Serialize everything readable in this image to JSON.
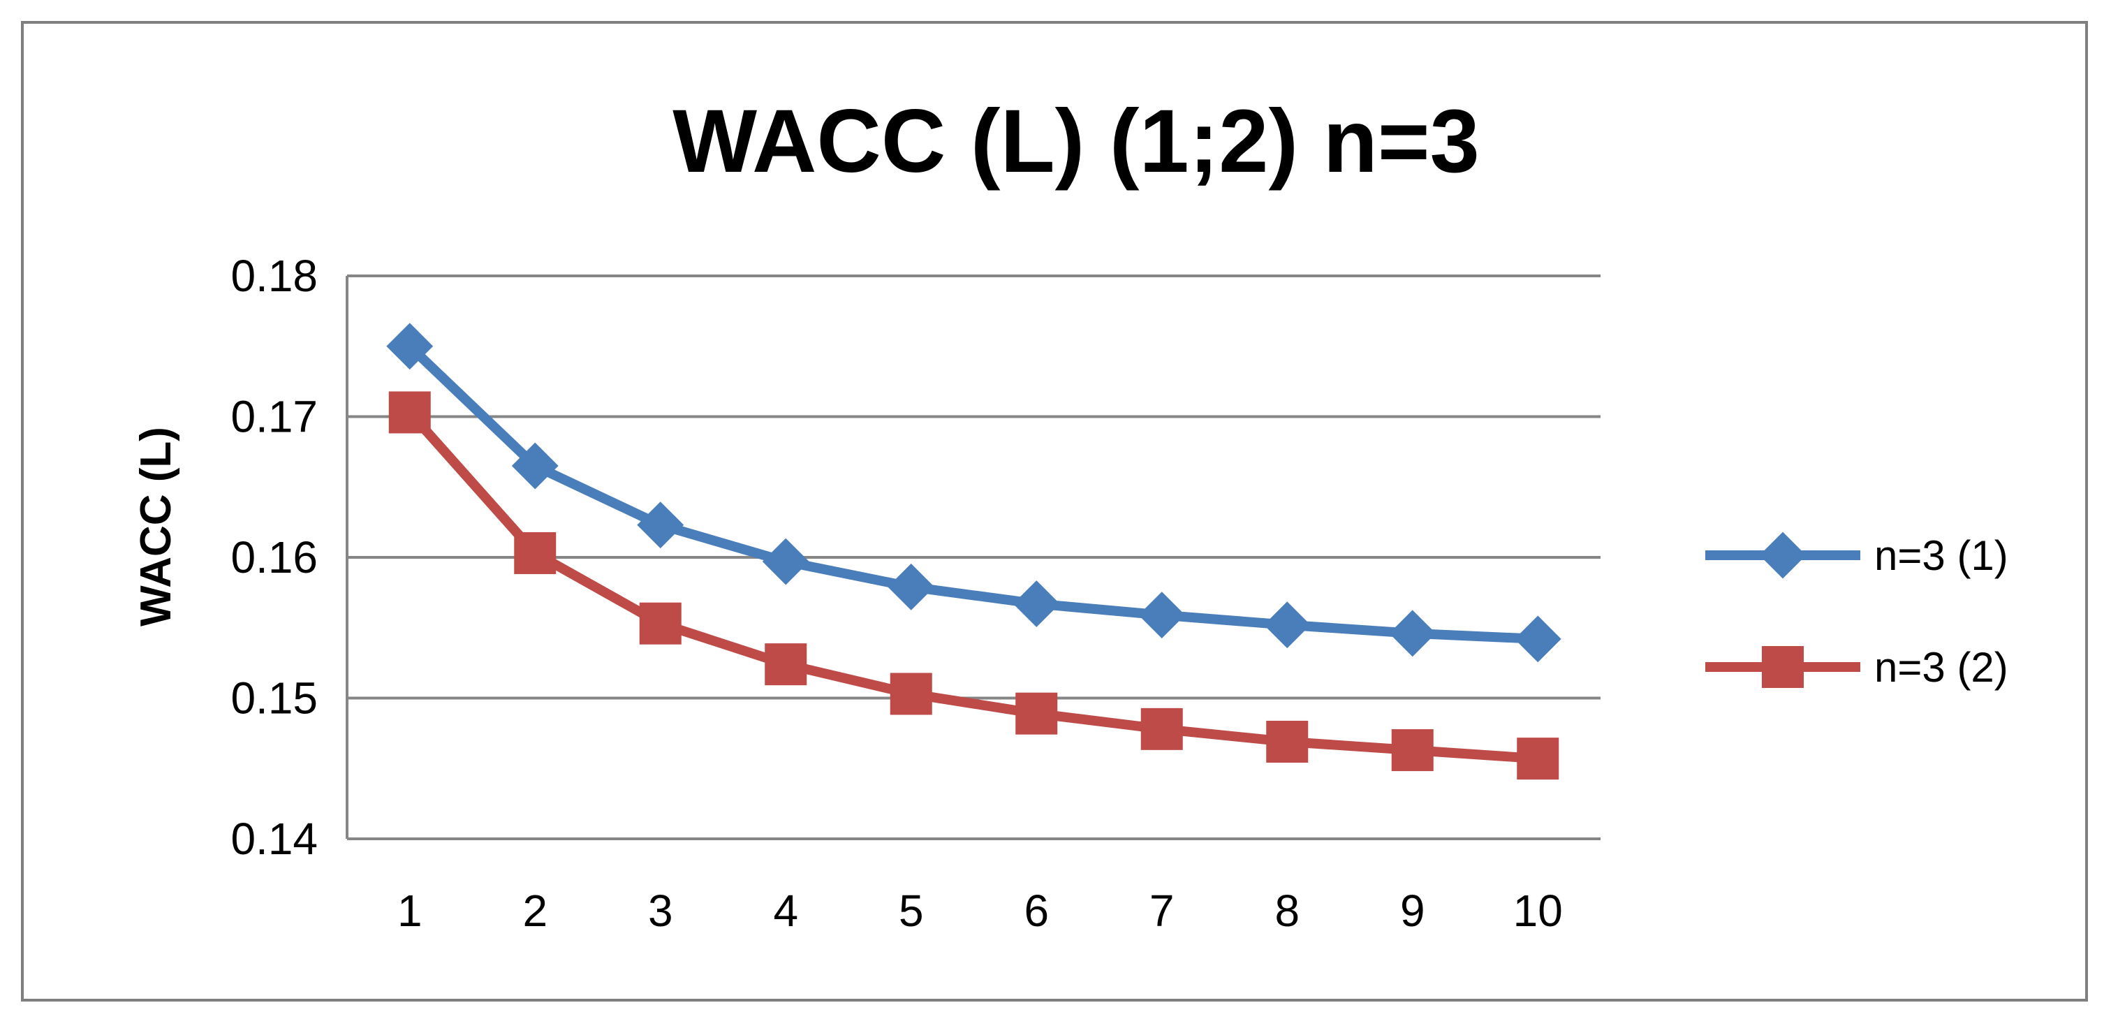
{
  "chart_data": {
    "type": "line",
    "title": "WACC (L) (1;2) n=3",
    "xlabel": "",
    "ylabel": "WACC (L)",
    "x": [
      1,
      2,
      3,
      4,
      5,
      6,
      7,
      8,
      9,
      10
    ],
    "x_tick_labels": [
      "1",
      "2",
      "3",
      "4",
      "5",
      "6",
      "7",
      "8",
      "9",
      "10"
    ],
    "ylim": [
      0.14,
      0.18
    ],
    "y_ticks": [
      0.14,
      0.15,
      0.16,
      0.17,
      0.18
    ],
    "y_tick_labels": [
      "0.14",
      "0.15",
      "0.16",
      "0.17",
      "0.18"
    ],
    "grid": "horizontal",
    "legend_position": "right",
    "series": [
      {
        "name": "n=3 (1)",
        "color": "#4a7ebb",
        "marker": "diamond",
        "values": [
          0.175,
          0.1665,
          0.1623,
          0.1597,
          0.1579,
          0.1567,
          0.1559,
          0.1552,
          0.1546,
          0.1542
        ]
      },
      {
        "name": "n=3 (2)",
        "color": "#be4b48",
        "marker": "square",
        "values": [
          0.1703,
          0.1603,
          0.1553,
          0.1524,
          0.1503,
          0.1489,
          0.1478,
          0.1469,
          0.1463,
          0.1457
        ]
      }
    ]
  }
}
